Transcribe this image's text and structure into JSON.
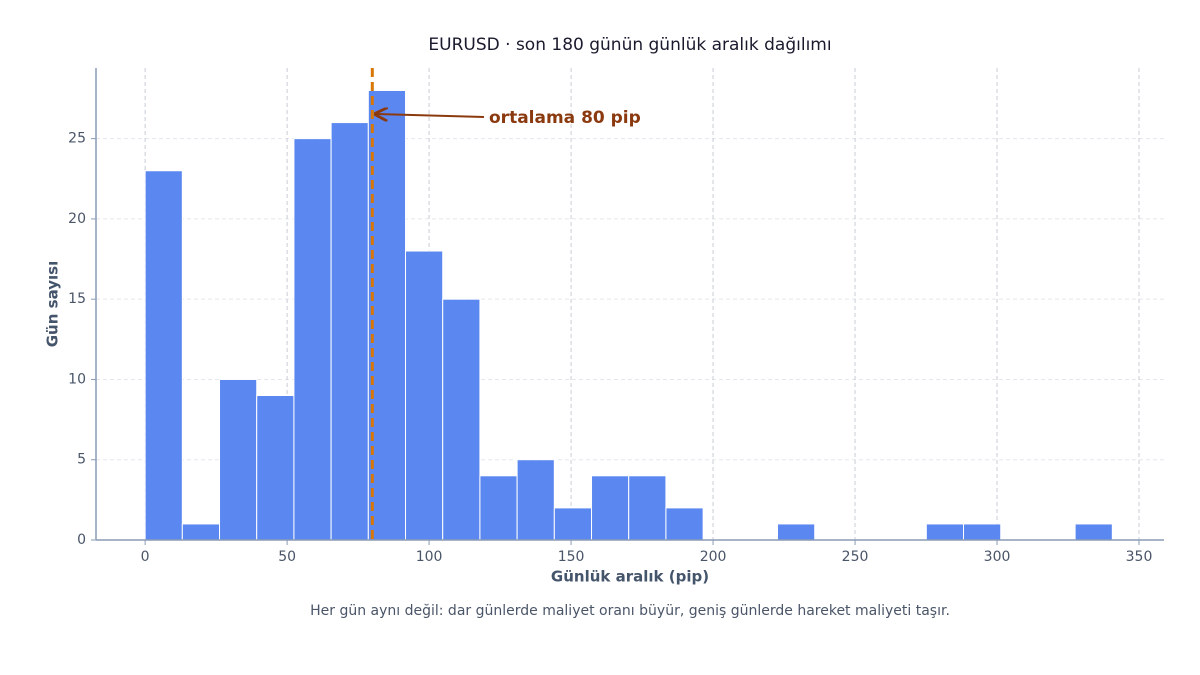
{
  "chart_data": {
    "type": "histogram",
    "title": "EURUSD · son 180 günün günlük aralık dağılımı",
    "xlabel": "Günlük aralık (pip)",
    "ylabel": "Gün sayısı",
    "caption": "Her gün aynı değil: dar günlerde maliyet oranı büyür, geniş günlerde hareket maliyeti taşır.",
    "bins": [
      0,
      13.1,
      26.2,
      39.3,
      52.4,
      65.5,
      78.6,
      91.7,
      104.8,
      117.9,
      131,
      144.1,
      157.2,
      170.3,
      183.4,
      196.5,
      209.6,
      222.7,
      235.8,
      248.9,
      262,
      275.1,
      288.2,
      301.3,
      314.4,
      327.5,
      340.6
    ],
    "values": [
      23,
      1,
      10,
      9,
      25,
      26,
      28,
      18,
      15,
      4,
      5,
      2,
      4,
      4,
      2,
      0,
      0,
      1,
      0,
      0,
      0,
      1,
      1,
      0,
      0,
      1
    ],
    "color": "#5b87f0",
    "mean_line": {
      "value": 80,
      "label": "ortalama 80 pip",
      "color": "#d97706",
      "text_color": "#8b3a0f"
    },
    "xlim": [
      -17.3,
      358.8
    ],
    "ylim": [
      0,
      29.4
    ],
    "xticks": [
      0,
      50,
      100,
      150,
      200,
      250,
      300,
      350
    ],
    "yticks": [
      0,
      5,
      10,
      15,
      20,
      25
    ],
    "grid": true
  }
}
